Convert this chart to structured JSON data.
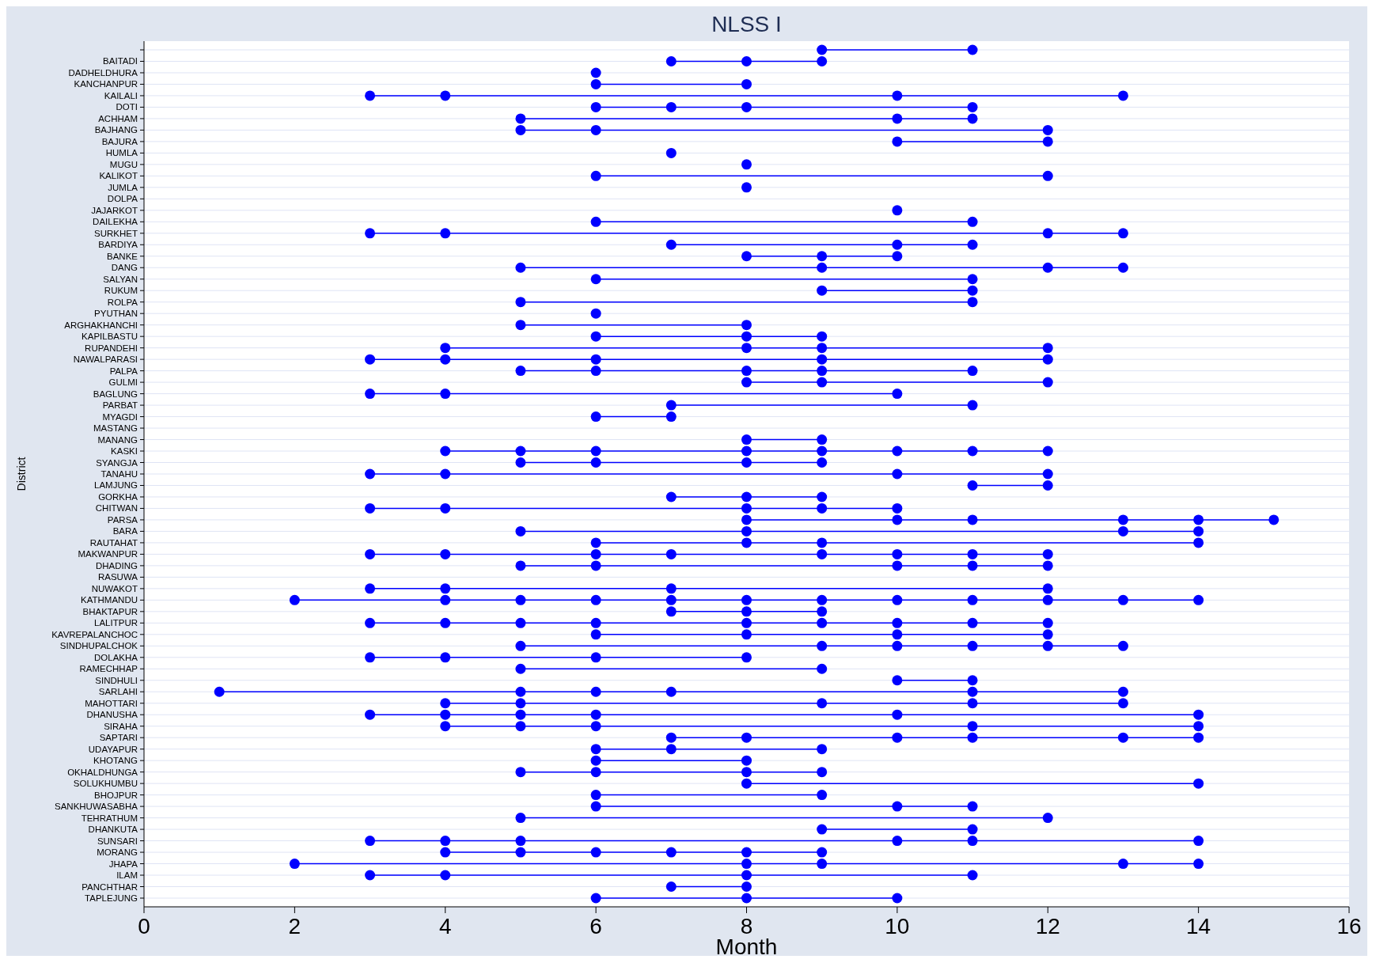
{
  "chart_data": {
    "type": "scatter",
    "orientation": "horizontal",
    "title": "NLSS I",
    "xlabel": "Month",
    "ylabel": "District",
    "marker": "circle",
    "grid": "y",
    "xlim": [
      0,
      16
    ],
    "xticks": [
      0,
      2,
      4,
      6,
      8,
      10,
      12,
      14,
      16
    ],
    "categories": [
      null,
      "BAITADI",
      "DADHELDHURA",
      "KANCHANPUR",
      "KAILALI",
      "DOTI",
      "ACHHAM",
      "BAJHANG",
      "BAJURA",
      "HUMLA",
      "MUGU",
      "KALIKOT",
      "JUMLA",
      "DOLPA",
      "JAJARKOT",
      "DAILEKHA",
      "SURKHET",
      "BARDIYA",
      "BANKE",
      "DANG",
      "SALYAN",
      "RUKUM",
      "ROLPA",
      "PYUTHAN",
      "ARGHAKHANCHI",
      "KAPILBASTU",
      "RUPANDEHI",
      "NAWALPARASI",
      "PALPA",
      "GULMI",
      "BAGLUNG",
      "PARBAT",
      "MYAGDI",
      "MASTANG",
      "MANANG",
      "KASKI",
      "SYANGJA",
      "TANAHU",
      "LAMJUNG",
      "GORKHA",
      "CHITWAN",
      "PARSA",
      "BARA",
      "RAUTAHAT",
      "MAKWANPUR",
      "DHADING",
      "RASUWA",
      "NUWAKOT",
      "KATHMANDU",
      "BHAKTAPUR",
      "LALITPUR",
      "KAVREPALANCHOC",
      "SINDHUPALCHOK",
      "DOLAKHA",
      "RAMECHHAP",
      "SINDHULI",
      "SARLAHI",
      "MAHOTTARI",
      "DHANUSHA",
      "SIRAHA",
      "SAPTARI",
      "UDAYAPUR",
      "KHOTANG",
      "OKHALDHUNGA",
      "SOLUKHUMBU",
      "BHOJPUR",
      "SANKHUWASABHA",
      "TEHRATHUM",
      "DHANKUTA",
      "SUNSARI",
      "MORANG",
      "JHAPA",
      "ILAM",
      "PANCHTHAR",
      "TAPLEJUNG"
    ],
    "series": [
      {
        "type": "scatter",
        "color": "#0000ff",
        "values": [
          9,
          7,
          6,
          6,
          3,
          6,
          5,
          5,
          10,
          7,
          8,
          6,
          8,
          null,
          10,
          6,
          3,
          7,
          8,
          5,
          6,
          9,
          5,
          6,
          5,
          6,
          4,
          3,
          5,
          8,
          3,
          7,
          6,
          null,
          8,
          4,
          5,
          3,
          11,
          7,
          3,
          8,
          5,
          6,
          3,
          5,
          null,
          3,
          2,
          7,
          3,
          6,
          5,
          3,
          5,
          10,
          1,
          4,
          3,
          4,
          7,
          6,
          6,
          5,
          8,
          6,
          6,
          5,
          9,
          3,
          4,
          2,
          3,
          7,
          6
        ]
      },
      {
        "type": "scatter",
        "color": "#0000ff",
        "values": [
          11,
          8,
          null,
          8,
          4,
          7,
          10,
          6,
          12,
          null,
          null,
          12,
          null,
          null,
          null,
          11,
          4,
          10,
          9,
          9,
          11,
          11,
          11,
          null,
          8,
          8,
          8,
          4,
          6,
          9,
          4,
          11,
          7,
          null,
          9,
          5,
          6,
          4,
          12,
          8,
          4,
          10,
          8,
          8,
          4,
          6,
          null,
          4,
          4,
          8,
          4,
          8,
          9,
          4,
          9,
          11,
          5,
          5,
          4,
          5,
          8,
          7,
          8,
          6,
          14,
          9,
          10,
          12,
          11,
          4,
          5,
          8,
          4,
          8,
          8
        ]
      },
      {
        "type": "scatter",
        "color": "#0000ff",
        "values": [
          null,
          9,
          null,
          null,
          10,
          8,
          11,
          12,
          null,
          null,
          null,
          null,
          null,
          null,
          null,
          null,
          12,
          11,
          10,
          12,
          null,
          null,
          null,
          null,
          null,
          9,
          9,
          6,
          8,
          12,
          10,
          null,
          null,
          null,
          null,
          6,
          8,
          10,
          null,
          9,
          8,
          11,
          13,
          9,
          6,
          10,
          null,
          7,
          5,
          9,
          5,
          10,
          10,
          6,
          null,
          null,
          6,
          9,
          5,
          6,
          10,
          9,
          null,
          8,
          null,
          null,
          11,
          null,
          null,
          5,
          6,
          9,
          8,
          null,
          10
        ]
      },
      {
        "type": "scatter",
        "color": "#0000ff",
        "values": [
          null,
          null,
          null,
          null,
          13,
          11,
          null,
          null,
          null,
          null,
          null,
          null,
          null,
          null,
          null,
          null,
          13,
          null,
          null,
          13,
          null,
          null,
          null,
          null,
          null,
          null,
          12,
          9,
          9,
          null,
          null,
          null,
          null,
          null,
          null,
          8,
          9,
          12,
          null,
          null,
          9,
          13,
          14,
          14,
          7,
          11,
          null,
          12,
          6,
          null,
          6,
          12,
          11,
          8,
          null,
          null,
          7,
          11,
          6,
          11,
          11,
          null,
          null,
          9,
          null,
          null,
          null,
          null,
          null,
          10,
          7,
          13,
          11,
          null,
          null
        ]
      },
      {
        "type": "scatter",
        "color": "#0000ff",
        "values": [
          null,
          null,
          null,
          null,
          null,
          null,
          null,
          null,
          null,
          null,
          null,
          null,
          null,
          null,
          null,
          null,
          null,
          null,
          null,
          null,
          null,
          null,
          null,
          null,
          null,
          null,
          null,
          12,
          11,
          null,
          null,
          null,
          null,
          null,
          null,
          9,
          null,
          null,
          null,
          null,
          10,
          14,
          null,
          null,
          9,
          12,
          null,
          null,
          7,
          null,
          8,
          null,
          12,
          null,
          null,
          null,
          11,
          13,
          10,
          14,
          13,
          null,
          null,
          null,
          null,
          null,
          null,
          null,
          null,
          11,
          8,
          14,
          null,
          null,
          null
        ]
      },
      {
        "type": "scatter",
        "color": "#0000ff",
        "values": [
          null,
          null,
          null,
          null,
          null,
          null,
          null,
          null,
          null,
          null,
          null,
          null,
          null,
          null,
          null,
          null,
          null,
          null,
          null,
          null,
          null,
          null,
          null,
          null,
          null,
          null,
          null,
          null,
          null,
          null,
          null,
          null,
          null,
          null,
          null,
          10,
          null,
          null,
          null,
          null,
          null,
          15,
          null,
          null,
          10,
          null,
          null,
          null,
          8,
          null,
          9,
          null,
          13,
          null,
          null,
          null,
          13,
          null,
          14,
          null,
          14,
          null,
          null,
          null,
          null,
          null,
          null,
          null,
          null,
          14,
          9,
          null,
          null,
          null,
          null
        ]
      },
      {
        "type": "scatter",
        "color": "#0000ff",
        "values": [
          null,
          null,
          null,
          null,
          null,
          null,
          null,
          null,
          null,
          null,
          null,
          null,
          null,
          null,
          null,
          null,
          null,
          null,
          null,
          null,
          null,
          null,
          null,
          null,
          null,
          null,
          null,
          null,
          null,
          null,
          null,
          null,
          null,
          null,
          null,
          11,
          null,
          null,
          null,
          null,
          null,
          null,
          null,
          null,
          11,
          null,
          null,
          null,
          9,
          null,
          10,
          null,
          null,
          null,
          null,
          null,
          null,
          null,
          null,
          null,
          null,
          null,
          null,
          null,
          null,
          null,
          null,
          null,
          null,
          null,
          null,
          null,
          null,
          null,
          null
        ]
      },
      {
        "type": "scatter",
        "color": "#0000ff",
        "values": [
          null,
          null,
          null,
          null,
          null,
          null,
          null,
          null,
          null,
          null,
          null,
          null,
          null,
          null,
          null,
          null,
          null,
          null,
          null,
          null,
          null,
          null,
          null,
          null,
          null,
          null,
          null,
          null,
          null,
          null,
          null,
          null,
          null,
          null,
          null,
          12,
          null,
          null,
          null,
          null,
          null,
          null,
          null,
          null,
          12,
          null,
          null,
          null,
          10,
          null,
          11,
          null,
          null,
          null,
          null,
          null,
          null,
          null,
          null,
          null,
          null,
          null,
          null,
          null,
          null,
          null,
          null,
          null,
          null,
          null,
          null,
          null,
          null,
          null,
          null
        ]
      },
      {
        "type": "scatter",
        "color": "#0000ff",
        "values": [
          null,
          null,
          null,
          null,
          null,
          null,
          null,
          null,
          null,
          null,
          null,
          null,
          null,
          null,
          null,
          null,
          null,
          null,
          null,
          null,
          null,
          null,
          null,
          null,
          null,
          null,
          null,
          null,
          null,
          null,
          null,
          null,
          null,
          null,
          null,
          null,
          null,
          null,
          null,
          null,
          null,
          null,
          null,
          null,
          null,
          null,
          null,
          null,
          11,
          null,
          12,
          null,
          null,
          null,
          null,
          null,
          null,
          null,
          null,
          null,
          null,
          null,
          null,
          null,
          null,
          null,
          null,
          null,
          null,
          null,
          null,
          null,
          null,
          null,
          null
        ]
      },
      {
        "type": "scatter",
        "color": "#0000ff",
        "values": [
          null,
          null,
          null,
          null,
          null,
          null,
          null,
          null,
          null,
          null,
          null,
          null,
          null,
          null,
          null,
          null,
          null,
          null,
          null,
          null,
          null,
          null,
          null,
          null,
          null,
          null,
          null,
          null,
          null,
          null,
          null,
          null,
          null,
          null,
          null,
          null,
          null,
          null,
          null,
          null,
          null,
          null,
          null,
          null,
          null,
          null,
          null,
          null,
          12,
          null,
          null,
          null,
          null,
          null,
          null,
          null,
          null,
          null,
          null,
          null,
          null,
          null,
          null,
          null,
          null,
          null,
          null,
          null,
          null,
          null,
          null,
          null,
          null,
          null,
          null
        ]
      },
      {
        "type": "scatter",
        "color": "#0000ff",
        "values": [
          null,
          null,
          null,
          null,
          null,
          null,
          null,
          null,
          null,
          null,
          null,
          null,
          null,
          null,
          null,
          null,
          null,
          null,
          null,
          null,
          null,
          null,
          null,
          null,
          null,
          null,
          null,
          null,
          null,
          null,
          null,
          null,
          null,
          null,
          null,
          null,
          null,
          null,
          null,
          null,
          null,
          null,
          null,
          null,
          null,
          null,
          null,
          null,
          13,
          null,
          null,
          null,
          null,
          null,
          null,
          null,
          null,
          null,
          null,
          null,
          null,
          null,
          null,
          null,
          null,
          null,
          null,
          null,
          null,
          null,
          null,
          null,
          null,
          null,
          null
        ]
      },
      {
        "type": "scatter",
        "color": "#0000ff",
        "values": [
          null,
          null,
          null,
          null,
          null,
          null,
          null,
          null,
          null,
          null,
          null,
          null,
          null,
          null,
          null,
          null,
          null,
          null,
          null,
          null,
          null,
          null,
          null,
          null,
          null,
          null,
          null,
          null,
          null,
          null,
          null,
          null,
          null,
          null,
          null,
          null,
          null,
          null,
          null,
          null,
          null,
          null,
          null,
          null,
          null,
          null,
          null,
          null,
          14,
          null,
          null,
          null,
          null,
          null,
          null,
          null,
          null,
          null,
          null,
          null,
          null,
          null,
          null,
          null,
          null,
          null,
          null,
          null,
          null,
          null,
          null,
          null,
          null,
          null,
          null
        ]
      }
    ]
  }
}
